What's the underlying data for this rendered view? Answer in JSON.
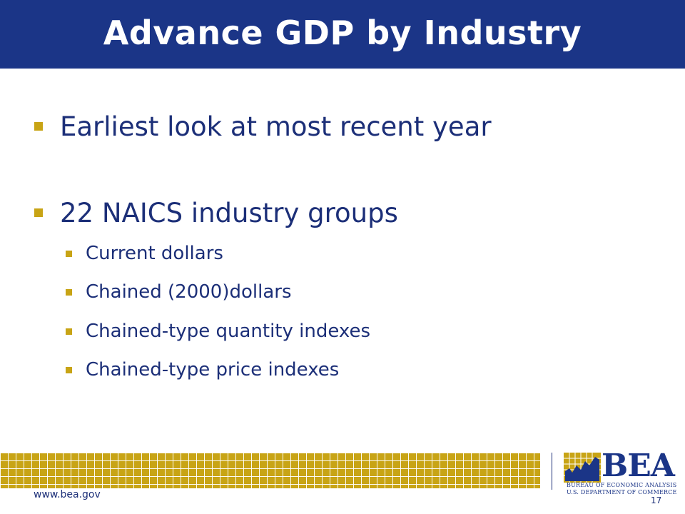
{
  "slide": {
    "title": "Advance GDP by Industry",
    "bullets": [
      {
        "text": "Earliest look at most recent year",
        "level": 1
      },
      {
        "text": "22 NAICS industry groups",
        "level": 1
      },
      {
        "text": "Current dollars",
        "level": 2
      },
      {
        "text": "Chained (2000)dollars",
        "level": 2
      },
      {
        "text": "Chained-type quantity indexes",
        "level": 2
      },
      {
        "text": "Chained-type price indexes",
        "level": 2
      }
    ],
    "footer": {
      "url": "www.bea.gov",
      "page_number": "17",
      "logo_word": "BEA",
      "logo_line1": "BUREAU OF ECONOMIC ANALYSIS",
      "logo_line2": "U.S. DEPARTMENT OF COMMERCE"
    }
  },
  "colors": {
    "title_bar": "#1b3587",
    "text": "#1c2f78",
    "accent_gold": "#c8a415"
  },
  "icons": {
    "bullet": "square-bullet-icon",
    "logo_mark": "bea-chart-logo-icon"
  }
}
